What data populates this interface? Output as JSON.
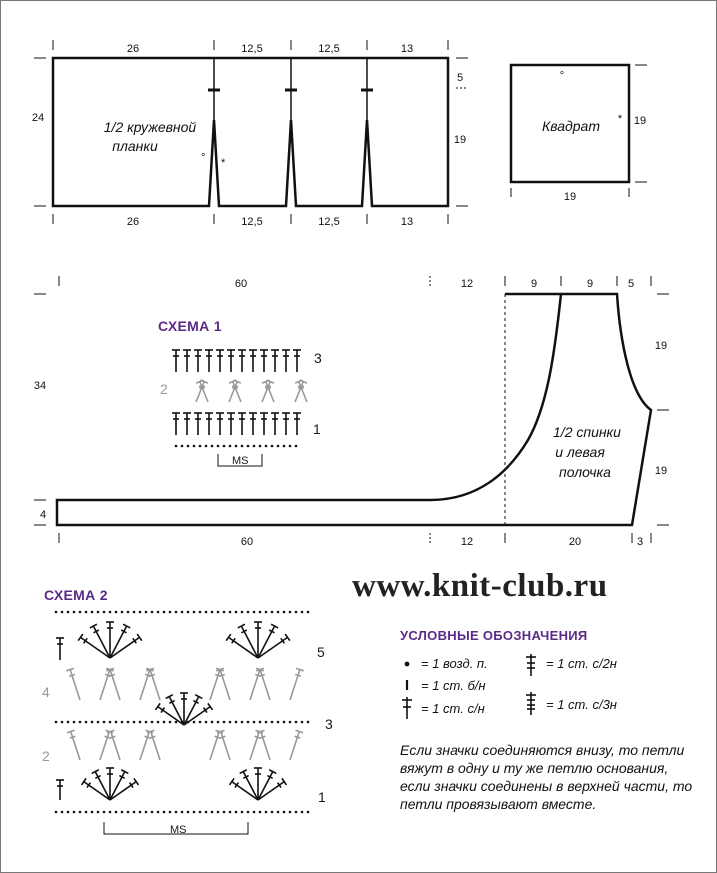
{
  "top_panel": {
    "label_line1": "1/2 кружевной",
    "label_line2": "планки",
    "top_dims": [
      "26",
      "12,5",
      "12,5",
      "13"
    ],
    "bottom_dims": [
      "26",
      "12,5",
      "12,5",
      "13"
    ],
    "height_left": "24",
    "right_top": "5",
    "right_bottom": "19",
    "marker_circle": "°",
    "marker_star": "*"
  },
  "square": {
    "label": "Квадрат",
    "side_right": "19",
    "side_bottom": "19",
    "marker_circle": "°",
    "marker_star": "*"
  },
  "back_panel": {
    "label_line1": "1/2 спинки",
    "label_line2": "и левая",
    "label_line3": "полочка",
    "top_dims": [
      "60",
      "12",
      "9",
      "9",
      "5"
    ],
    "bottom_dims": [
      "60",
      "12",
      "20",
      "3"
    ],
    "height_left": "34",
    "strip_height": "4",
    "right_top": "19",
    "right_bottom": "19"
  },
  "schema1": {
    "title": "СХЕМА 1",
    "row_labels": [
      "3",
      "2",
      "1"
    ],
    "repeat_label": "MS"
  },
  "schema2": {
    "title": "СХЕМА 2",
    "row_labels": [
      "5",
      "4",
      "3",
      "2",
      "1"
    ],
    "repeat_label": "MS"
  },
  "watermark": "www.knit-club.ru",
  "legend": {
    "title": "УСЛОВНЫЕ ОБОЗНАЧЕНИЯ",
    "items": [
      {
        "icon": "chain-dot-icon",
        "text": "= 1 возд. п."
      },
      {
        "icon": "slip-stitch-icon",
        "text": "= 1 ст. б/н"
      },
      {
        "icon": "double-crochet-icon",
        "text": "= 1 ст. с/н"
      },
      {
        "icon": "treble-crochet-icon",
        "text": "= 1 ст. с/2н"
      },
      {
        "icon": "double-treble-icon",
        "text": "= 1 ст. с/3н"
      }
    ],
    "note": "Если значки соединяются внизу, то петли вяжут в одну и ту же петлю основания, если значки соединены в верхней части, то петли провязывают вместе."
  }
}
